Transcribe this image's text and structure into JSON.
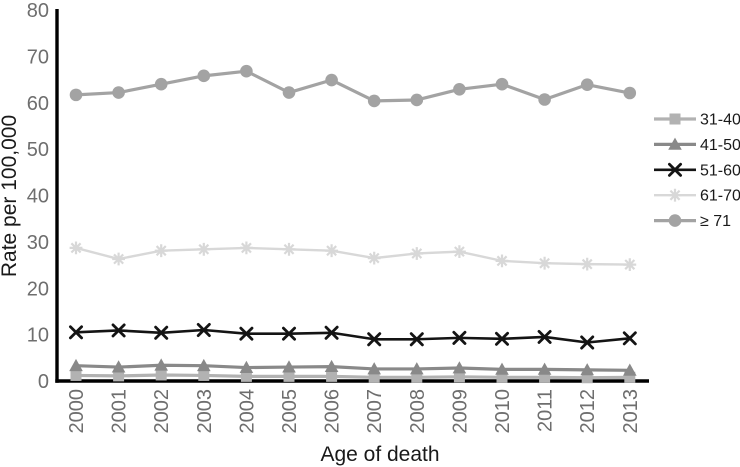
{
  "chart_data": {
    "type": "line",
    "title": "",
    "xlabel": "Age of death",
    "ylabel": "Rate per 100,000",
    "x": [
      2000,
      2001,
      2002,
      2003,
      2004,
      2005,
      2006,
      2007,
      2008,
      2009,
      2010,
      2011,
      2012,
      2013
    ],
    "x_tick_rotation": -90,
    "ylim": [
      0,
      80
    ],
    "ytick_interval": 10,
    "grid": false,
    "legend_position": "right",
    "series": [
      {
        "name": "31-40",
        "marker": "square",
        "color": "#b2b2b2",
        "line_width": 3.2,
        "values": [
          1.2,
          1.1,
          1.3,
          1.2,
          1.0,
          1.0,
          1.0,
          0.8,
          0.8,
          0.9,
          0.8,
          0.8,
          0.7,
          0.8
        ]
      },
      {
        "name": "41-50",
        "marker": "triangle",
        "color": "#898989",
        "line_width": 3.2,
        "values": [
          3.3,
          3.0,
          3.4,
          3.3,
          2.9,
          3.0,
          3.1,
          2.6,
          2.6,
          2.8,
          2.5,
          2.5,
          2.4,
          2.3
        ]
      },
      {
        "name": "51-60",
        "marker": "x",
        "color": "#141414",
        "line_width": 2.6,
        "values": [
          10.5,
          10.9,
          10.4,
          11.0,
          10.2,
          10.2,
          10.4,
          9.0,
          9.0,
          9.3,
          9.1,
          9.5,
          8.3,
          9.2
        ]
      },
      {
        "name": "61-70",
        "marker": "asterisk",
        "color": "#d8d8d8",
        "line_width": 2.4,
        "values": [
          28.7,
          26.3,
          28.1,
          28.4,
          28.7,
          28.4,
          28.1,
          26.5,
          27.5,
          27.9,
          25.9,
          25.4,
          25.2,
          25.1
        ]
      },
      {
        "name": "≥ 71",
        "marker": "circle",
        "color": "#a3a3a3",
        "line_width": 3.2,
        "values": [
          61.7,
          62.2,
          64.0,
          65.8,
          66.8,
          62.2,
          64.9,
          60.4,
          60.6,
          62.9,
          64.0,
          60.7,
          63.9,
          62.1
        ]
      }
    ]
  },
  "style": {
    "background": "#ffffff",
    "axis_color": "#000000",
    "tick_label_color": "#6e6e6e",
    "axis_title_color": "#1a1a1a",
    "legend_text_color": "#1a1a1a"
  }
}
